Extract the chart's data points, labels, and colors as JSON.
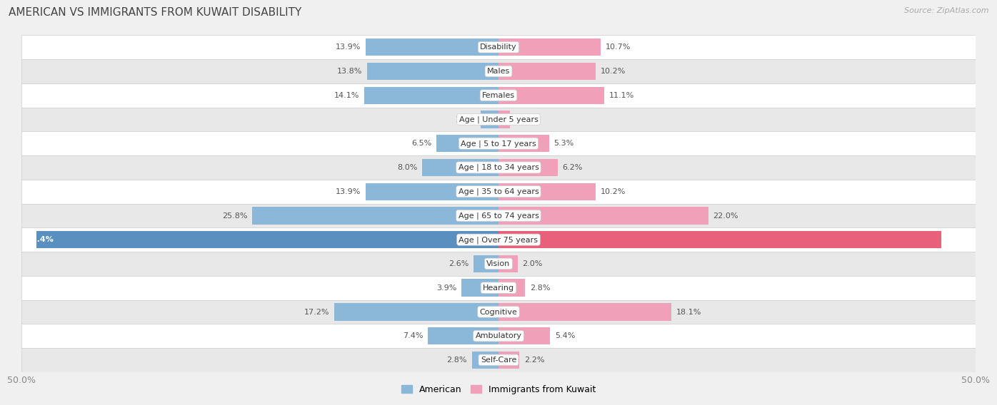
{
  "title": "AMERICAN VS IMMIGRANTS FROM KUWAIT DISABILITY",
  "source": "Source: ZipAtlas.com",
  "categories": [
    "Disability",
    "Males",
    "Females",
    "Age | Under 5 years",
    "Age | 5 to 17 years",
    "Age | 18 to 34 years",
    "Age | 35 to 64 years",
    "Age | 65 to 74 years",
    "Age | Over 75 years",
    "Vision",
    "Hearing",
    "Cognitive",
    "Ambulatory",
    "Self-Care"
  ],
  "american_values": [
    13.9,
    13.8,
    14.1,
    1.9,
    6.5,
    8.0,
    13.9,
    25.8,
    48.4,
    2.6,
    3.9,
    17.2,
    7.4,
    2.8
  ],
  "kuwait_values": [
    10.7,
    10.2,
    11.1,
    1.2,
    5.3,
    6.2,
    10.2,
    22.0,
    46.4,
    2.0,
    2.8,
    18.1,
    5.4,
    2.2
  ],
  "american_color": "#8bb8d8",
  "kuwait_color": "#f0a0b8",
  "american_color_dark": "#5a90c0",
  "kuwait_color_dark": "#e8607a",
  "x_max": 50.0,
  "background_color": "#f0f0f0",
  "row_bg_white": "#ffffff",
  "row_bg_gray": "#e8e8e8",
  "row_border": "#d0d0d0",
  "legend_american": "American",
  "legend_kuwait": "Immigrants from Kuwait"
}
